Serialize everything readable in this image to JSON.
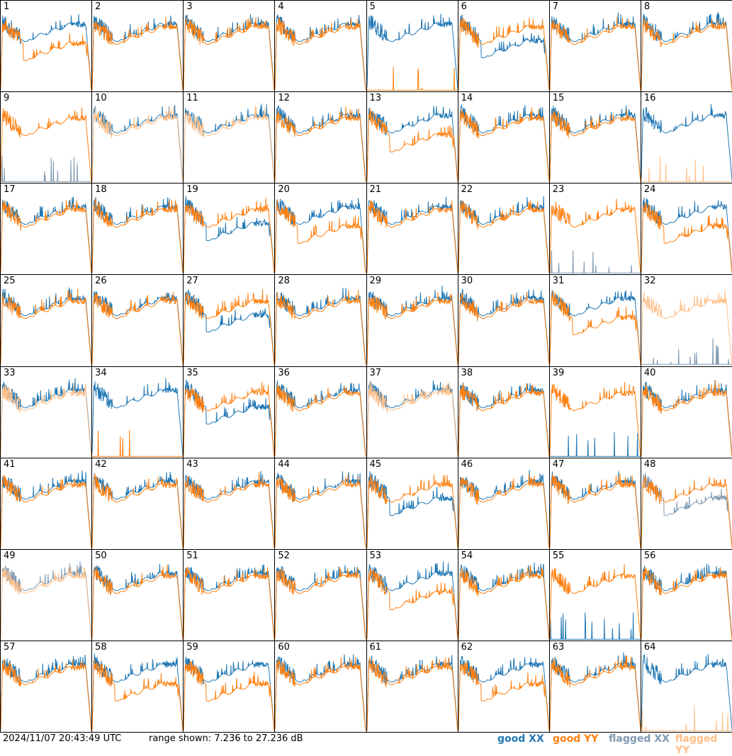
{
  "footer": {
    "timestamp": "2024/11/07 20:43:49 UTC",
    "range_text": "range shown: 7.236 to 27.236 dB"
  },
  "legend": [
    {
      "label": "good XX",
      "color": "#1f77b4"
    },
    {
      "label": "good YY",
      "color": "#ff7f0e"
    },
    {
      "label": "flagged XX",
      "color": "#7f99b2"
    },
    {
      "label": "flagged YY",
      "color": "#ffbf87"
    }
  ],
  "chart_data": {
    "type": "line",
    "title": "",
    "ylim": [
      7.236,
      27.236
    ],
    "yunit": "dB",
    "grid": "8x8 small multiples, no axes",
    "panels": [
      {
        "id": "1",
        "xx": "good",
        "yy": "good",
        "note": "YY drops low"
      },
      {
        "id": "2",
        "xx": "good",
        "yy": "good"
      },
      {
        "id": "3",
        "xx": "good",
        "yy": "good"
      },
      {
        "id": "4",
        "xx": "good",
        "yy": "good"
      },
      {
        "id": "5",
        "xx": "good",
        "yy": "good",
        "note": "YY near floor"
      },
      {
        "id": "6",
        "xx": "good",
        "yy": "good",
        "note": "XX low"
      },
      {
        "id": "7",
        "xx": "good",
        "yy": "good"
      },
      {
        "id": "8",
        "xx": "good",
        "yy": "good"
      },
      {
        "id": "9",
        "xx": "flagged",
        "yy": "good",
        "note": "XX flagged low"
      },
      {
        "id": "10",
        "xx": "good",
        "yy": "flagged"
      },
      {
        "id": "11",
        "xx": "good",
        "yy": "flagged"
      },
      {
        "id": "12",
        "xx": "good",
        "yy": "good"
      },
      {
        "id": "13",
        "xx": "good",
        "yy": "good",
        "note": "YY low"
      },
      {
        "id": "14",
        "xx": "good",
        "yy": "good"
      },
      {
        "id": "15",
        "xx": "good",
        "yy": "good"
      },
      {
        "id": "16",
        "xx": "good",
        "yy": "flagged",
        "note": "YY flagged at floor"
      },
      {
        "id": "17",
        "xx": "good",
        "yy": "good"
      },
      {
        "id": "18",
        "xx": "good",
        "yy": "good"
      },
      {
        "id": "19",
        "xx": "good",
        "yy": "good",
        "note": "XX low"
      },
      {
        "id": "20",
        "xx": "good",
        "yy": "good",
        "note": "YY low"
      },
      {
        "id": "21",
        "xx": "good",
        "yy": "good"
      },
      {
        "id": "22",
        "xx": "good",
        "yy": "good"
      },
      {
        "id": "23",
        "xx": "flagged",
        "yy": "good",
        "note": "XX flagged low"
      },
      {
        "id": "24",
        "xx": "good",
        "yy": "good",
        "note": "YY low"
      },
      {
        "id": "25",
        "xx": "good",
        "yy": "good"
      },
      {
        "id": "26",
        "xx": "good",
        "yy": "good"
      },
      {
        "id": "27",
        "xx": "good",
        "yy": "good",
        "note": "XX low"
      },
      {
        "id": "28",
        "xx": "good",
        "yy": "good"
      },
      {
        "id": "29",
        "xx": "good",
        "yy": "good"
      },
      {
        "id": "30",
        "xx": "good",
        "yy": "good"
      },
      {
        "id": "31",
        "xx": "good",
        "yy": "good",
        "note": "YY low"
      },
      {
        "id": "32",
        "xx": "flagged",
        "yy": "flagged",
        "note": "XX at floor"
      },
      {
        "id": "33",
        "xx": "good",
        "yy": "flagged"
      },
      {
        "id": "34",
        "xx": "good",
        "yy": "good",
        "note": "YY near floor"
      },
      {
        "id": "35",
        "xx": "good",
        "yy": "good",
        "note": "XX low"
      },
      {
        "id": "36",
        "xx": "good",
        "yy": "good"
      },
      {
        "id": "37",
        "xx": "good",
        "yy": "flagged"
      },
      {
        "id": "38",
        "xx": "good",
        "yy": "good"
      },
      {
        "id": "39",
        "xx": "good",
        "yy": "good",
        "note": "XX near floor"
      },
      {
        "id": "40",
        "xx": "good",
        "yy": "good"
      },
      {
        "id": "41",
        "xx": "good",
        "yy": "good"
      },
      {
        "id": "42",
        "xx": "good",
        "yy": "good"
      },
      {
        "id": "43",
        "xx": "good",
        "yy": "good"
      },
      {
        "id": "44",
        "xx": "good",
        "yy": "good"
      },
      {
        "id": "45",
        "xx": "good",
        "yy": "good",
        "note": "XX low"
      },
      {
        "id": "46",
        "xx": "good",
        "yy": "good"
      },
      {
        "id": "47",
        "xx": "good",
        "yy": "good"
      },
      {
        "id": "48",
        "xx": "flagged",
        "yy": "good",
        "note": "XX low"
      },
      {
        "id": "49",
        "xx": "flagged",
        "yy": "flagged"
      },
      {
        "id": "50",
        "xx": "good",
        "yy": "good"
      },
      {
        "id": "51",
        "xx": "good",
        "yy": "good"
      },
      {
        "id": "52",
        "xx": "good",
        "yy": "good"
      },
      {
        "id": "53",
        "xx": "good",
        "yy": "good",
        "note": "YY low"
      },
      {
        "id": "54",
        "xx": "good",
        "yy": "good"
      },
      {
        "id": "55",
        "xx": "good",
        "yy": "good",
        "note": "XX near floor"
      },
      {
        "id": "56",
        "xx": "good",
        "yy": "good"
      },
      {
        "id": "57",
        "xx": "good",
        "yy": "good"
      },
      {
        "id": "58",
        "xx": "good",
        "yy": "good",
        "note": "YY low"
      },
      {
        "id": "59",
        "xx": "good",
        "yy": "good",
        "note": "YY low"
      },
      {
        "id": "60",
        "xx": "good",
        "yy": "good"
      },
      {
        "id": "61",
        "xx": "good",
        "yy": "good"
      },
      {
        "id": "62",
        "xx": "good",
        "yy": "good",
        "note": "YY low"
      },
      {
        "id": "63",
        "xx": "good",
        "yy": "good"
      },
      {
        "id": "64",
        "xx": "good",
        "yy": "flagged",
        "note": "YY flagged at floor"
      }
    ]
  }
}
